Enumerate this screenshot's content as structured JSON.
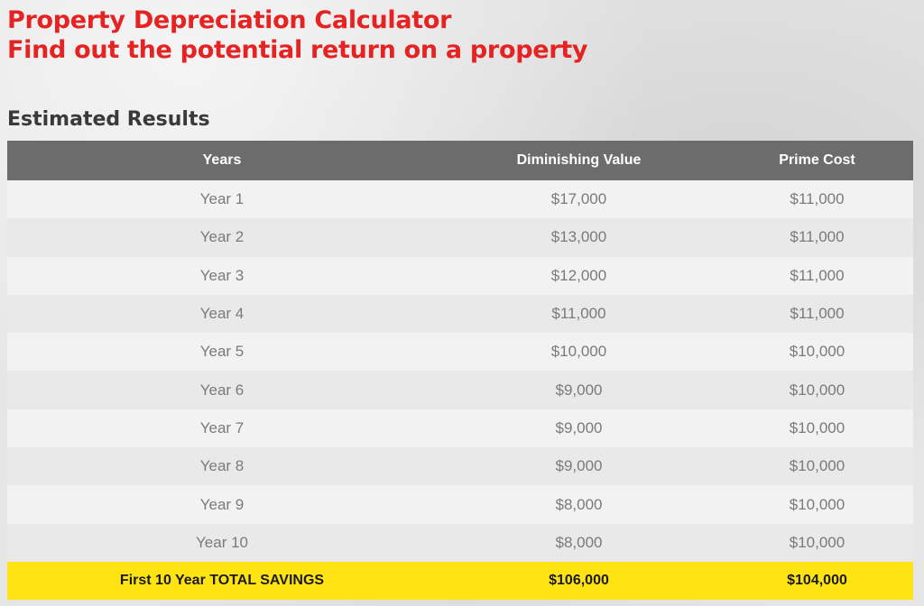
{
  "header": {
    "title": "Property Depreciation Calculator",
    "subtitle": "Find out the potential return on a property"
  },
  "results": {
    "heading": "Estimated Results",
    "columns": [
      "Years",
      "Diminishing Value",
      "Prime Cost"
    ],
    "rows": [
      {
        "year": "Year 1",
        "diminishing": "$17,000",
        "prime": "$11,000"
      },
      {
        "year": "Year 2",
        "diminishing": "$13,000",
        "prime": "$11,000"
      },
      {
        "year": "Year 3",
        "diminishing": "$12,000",
        "prime": "$11,000"
      },
      {
        "year": "Year 4",
        "diminishing": "$11,000",
        "prime": "$11,000"
      },
      {
        "year": "Year 5",
        "diminishing": "$10,000",
        "prime": "$10,000"
      },
      {
        "year": "Year 6",
        "diminishing": "$9,000",
        "prime": "$10,000"
      },
      {
        "year": "Year 7",
        "diminishing": "$9,000",
        "prime": "$10,000"
      },
      {
        "year": "Year 8",
        "diminishing": "$9,000",
        "prime": "$10,000"
      },
      {
        "year": "Year 9",
        "diminishing": "$8,000",
        "prime": "$10,000"
      },
      {
        "year": "Year 10",
        "diminishing": "$8,000",
        "prime": "$10,000"
      }
    ],
    "total": {
      "label": "First 10 Year TOTAL SAVINGS",
      "diminishing": "$106,000",
      "prime": "$104,000"
    }
  },
  "colors": {
    "title": "#e52323",
    "header_bg": "#6c6c6c",
    "total_bg": "#ffe312"
  }
}
